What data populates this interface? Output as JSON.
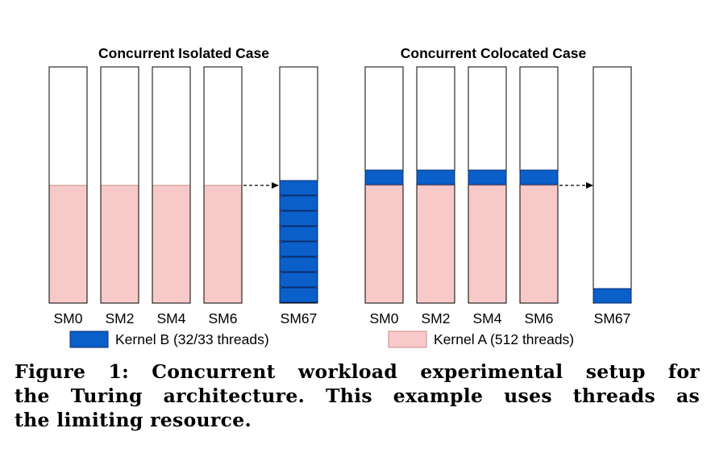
{
  "panels": [
    {
      "title": "Concurrent Isolated Case",
      "sm_labels": [
        "SM0",
        "SM2",
        "SM4",
        "SM6",
        "SM67"
      ],
      "kernel_b_blocks_on_last_sm": 8,
      "kernel_b_blocks_on_first_sms": 0
    },
    {
      "title": "Concurrent Colocated Case",
      "sm_labels": [
        "SM0",
        "SM2",
        "SM4",
        "SM6",
        "SM67"
      ],
      "kernel_b_blocks_on_last_sm": 1,
      "kernel_b_blocks_on_first_sms": 1
    }
  ],
  "legend": {
    "kernel_b": "Kernel B (32/33 threads)",
    "kernel_a": "Kernel A (512 threads)"
  },
  "caption": {
    "line1": "Figure 1: Concurrent workload experimental setup for",
    "line2": "the Turing architecture. This example uses threads as",
    "line3": "the limiting resource."
  },
  "colors": {
    "kernel_a_fill": "#f7cac9",
    "kernel_a_stroke": "#c98a88",
    "kernel_b_fill": "#0a5fc9",
    "kernel_b_stroke": "#0a2e6e",
    "sm_outline": "#000000"
  },
  "icons": {
    "arrow": "dashed-arrow-icon"
  }
}
